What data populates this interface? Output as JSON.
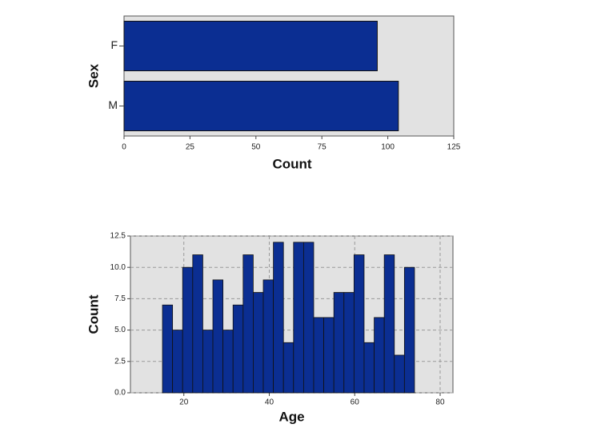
{
  "chart_data": [
    {
      "type": "bar",
      "orientation": "horizontal",
      "categories": [
        "F",
        "M"
      ],
      "values": [
        96,
        104
      ],
      "color": "#0b2e92",
      "xlim": [
        0,
        125
      ],
      "xticks": [
        0,
        25,
        50,
        75,
        100,
        125
      ],
      "x_label": "Count",
      "y_label": "Sex",
      "grid": false
    },
    {
      "type": "histogram",
      "bins": [
        15,
        17.36,
        19.72,
        22.08,
        24.44,
        26.8,
        29.16,
        31.52,
        33.88,
        36.24,
        38.6,
        40.96,
        43.32,
        45.68,
        48.04,
        50.4,
        52.76,
        55.12,
        57.48,
        59.84,
        62.2,
        64.56,
        66.92,
        69.28,
        71.64,
        74
      ],
      "values": [
        7,
        5,
        10,
        11,
        5,
        9,
        5,
        7,
        11,
        8,
        9,
        12,
        4,
        12,
        12,
        6,
        6,
        8,
        8,
        11,
        4,
        6,
        11,
        3,
        10
      ],
      "color": "#0b2e92",
      "xlim": [
        7.5,
        83
      ],
      "xticks": [
        20,
        40,
        60,
        80
      ],
      "ylim": [
        0,
        12.5
      ],
      "yticks": [
        {
          "value": 0,
          "label": "0.0"
        },
        2.5,
        {
          "value": 5,
          "label": "5.0"
        },
        7.5,
        {
          "value": 10,
          "label": "10.0"
        },
        12.5
      ],
      "x_label": "Age",
      "y_label": "Count",
      "grid": true
    }
  ]
}
